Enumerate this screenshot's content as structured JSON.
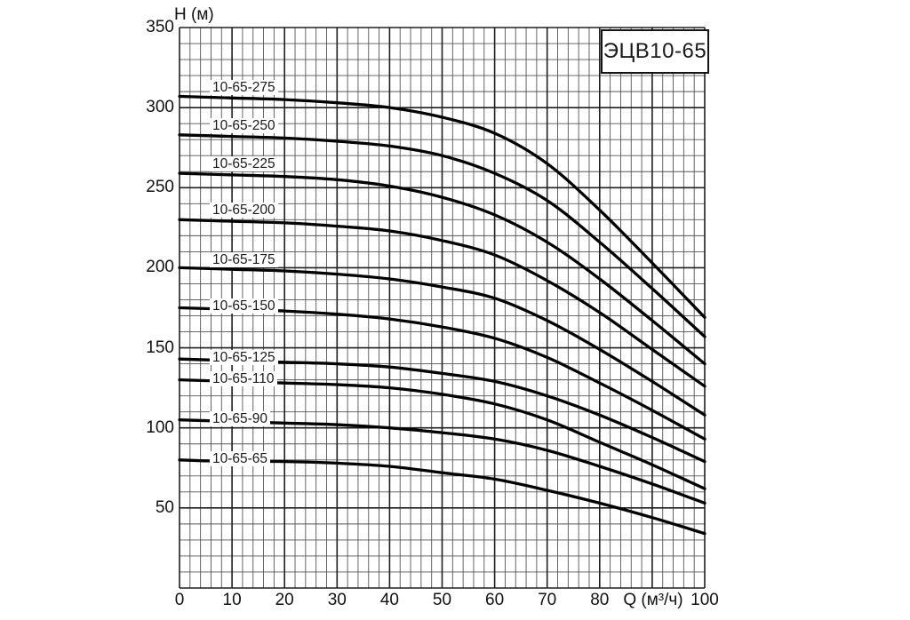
{
  "title_box": {
    "label": "ЭЦВ10-65"
  },
  "axes": {
    "y_label": "H (м)",
    "x_label": "Q (м³/ч)",
    "y_ticks": [
      350,
      300,
      250,
      200,
      150,
      100,
      50
    ],
    "x_ticks": [
      0,
      10,
      20,
      30,
      40,
      50,
      60,
      70,
      80,
      100
    ],
    "x_label_replaces_tick": 90
  },
  "chart_data": {
    "type": "line",
    "title": "ЭЦВ10-65",
    "xlabel": "Q (м³/ч)",
    "ylabel": "H (м)",
    "xlim": [
      0,
      100
    ],
    "ylim": [
      0,
      350
    ],
    "grid": {
      "on": true,
      "x_minor_step": 2,
      "x_major_step": 10,
      "y_minor_step": 10,
      "y_major_step": 50
    },
    "legend": "inline-labels",
    "x": [
      0,
      10,
      20,
      30,
      40,
      50,
      60,
      70,
      80,
      90,
      100
    ],
    "series": [
      {
        "name": "10-65-275",
        "values": [
          307,
          306,
          305,
          303,
          300,
          294,
          284,
          265,
          236,
          203,
          169
        ],
        "label_gap": 19
      },
      {
        "name": "10-65-250",
        "values": [
          283,
          282,
          281,
          279,
          276,
          270,
          259,
          242,
          216,
          187,
          157
        ],
        "label_gap": 19
      },
      {
        "name": "10-65-225",
        "values": [
          259,
          258,
          257,
          255,
          251,
          244,
          233,
          216,
          193,
          167,
          140
        ],
        "label_gap": 19
      },
      {
        "name": "10-65-200",
        "values": [
          230,
          229,
          228,
          226,
          223,
          217,
          208,
          192,
          172,
          149,
          126
        ],
        "label_gap": 19
      },
      {
        "name": "10-65-175",
        "values": [
          200,
          199,
          198,
          196,
          193,
          188,
          181,
          167,
          149,
          129,
          108
        ],
        "label_gap": 17
      },
      {
        "name": "10-65-150",
        "values": [
          175,
          174,
          173,
          171,
          168,
          163,
          156,
          144,
          128,
          111,
          93
        ],
        "label_gap": 11
      },
      {
        "name": "10-65-125",
        "values": [
          143,
          142,
          141,
          140,
          138,
          134,
          129,
          120,
          108,
          94,
          79
        ],
        "label_gap": 10
      },
      {
        "name": "10-65-110",
        "values": [
          130,
          129,
          128,
          127,
          125,
          121,
          115,
          105,
          91,
          77,
          62
        ],
        "label_gap": 10
      },
      {
        "name": "10-65-90",
        "values": [
          105,
          104,
          103,
          102,
          100,
          97,
          93,
          86,
          76,
          65,
          53
        ],
        "label_gap": 10
      },
      {
        "name": "10-65-65",
        "values": [
          80,
          79,
          79,
          78,
          76,
          72,
          68,
          61,
          53,
          44,
          34
        ],
        "label_gap": 10
      }
    ]
  },
  "colors": {
    "background": "#ffffff",
    "curve": "#000000",
    "grid_minor": "#555555",
    "grid_major": "#1f1f1f",
    "text": "#1a1a1a",
    "title_border": "#141414"
  }
}
